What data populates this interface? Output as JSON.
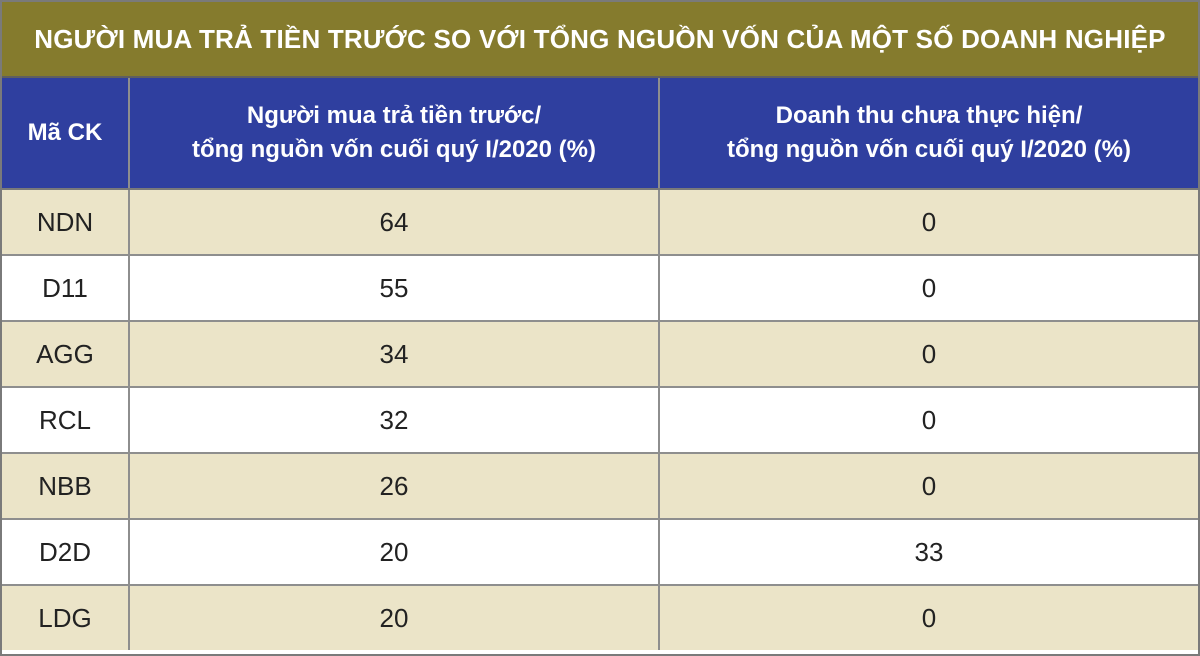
{
  "title": "NGƯỜI MUA TRẢ TIỀN TRƯỚC SO VỚI TỔNG NGUỒN VỐN CỦA MỘT SỐ DOANH NGHIỆP",
  "header": {
    "col1": "Mã CK",
    "col2_line1": "Người mua trả tiền trước/",
    "col2_line2": "tổng nguồn vốn cuối quý I/2020 (%)",
    "col3_line1": "Doanh thu chưa thực hiện/",
    "col3_line2": "tổng nguồn vốn cuối quý I/2020 (%)"
  },
  "rows": [
    {
      "code": "NDN",
      "advance": "64",
      "unearned": "0"
    },
    {
      "code": "D11",
      "advance": "55",
      "unearned": "0"
    },
    {
      "code": "AGG",
      "advance": "34",
      "unearned": "0"
    },
    {
      "code": "RCL",
      "advance": "32",
      "unearned": "0"
    },
    {
      "code": "NBB",
      "advance": "26",
      "unearned": "0"
    },
    {
      "code": "D2D",
      "advance": "20",
      "unearned": "33"
    },
    {
      "code": "LDG",
      "advance": "20",
      "unearned": "0"
    }
  ],
  "colors": {
    "title_bg": "#857b2d",
    "header_bg": "#2f3f9f",
    "odd_row_bg": "#ebe4c8",
    "even_row_bg": "#ffffff"
  }
}
